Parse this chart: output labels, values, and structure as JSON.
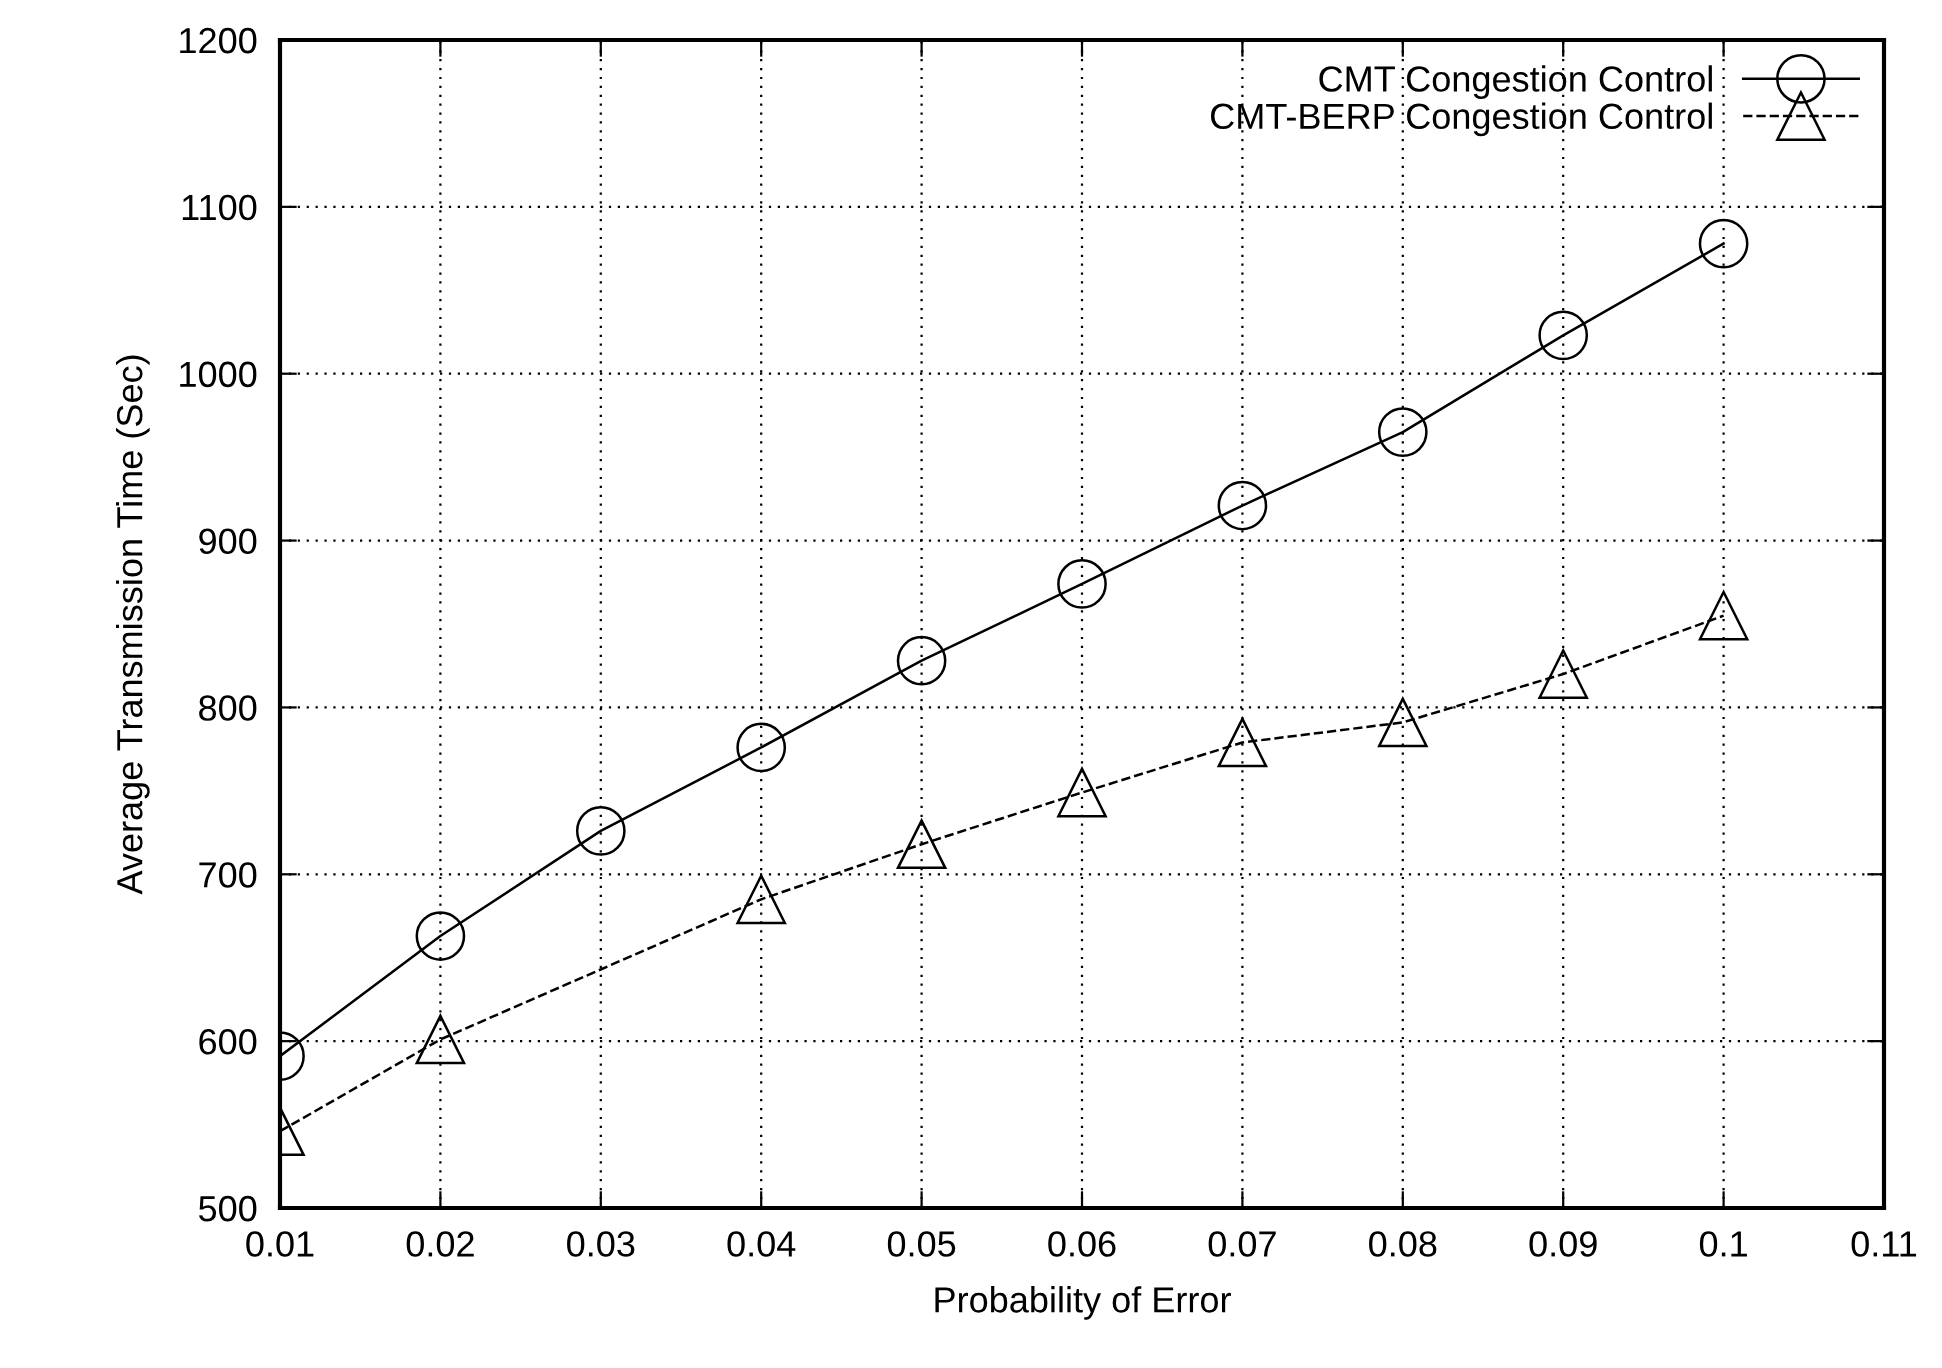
{
  "chart_data": {
    "type": "line",
    "xlabel": "Probability of Error",
    "ylabel": "Average Transmission Time (Sec)",
    "xlim": [
      0.01,
      0.11
    ],
    "xticks": [
      0.01,
      0.02,
      0.03,
      0.04,
      0.05,
      0.06,
      0.07,
      0.08,
      0.09,
      0.1,
      0.11
    ],
    "ylim": [
      500,
      1200
    ],
    "yticks": [
      500,
      600,
      700,
      800,
      900,
      1000,
      1100,
      1200
    ],
    "grid": true,
    "legend": "top right",
    "series": [
      {
        "name": "CMT Congestion Control",
        "color": "#000000",
        "marker": "circle",
        "line_style": "solid",
        "x": [
          0.01,
          0.02,
          0.03,
          0.04,
          0.05,
          0.06,
          0.07,
          0.08,
          0.09,
          0.1
        ],
        "values": [
          591,
          663,
          726,
          776,
          828,
          874,
          921,
          965,
          1023,
          1078
        ]
      },
      {
        "name": "CMT-BERP Congestion Control",
        "color": "#000000",
        "marker": "triangle",
        "line_style": "dashed",
        "x": [
          0.01,
          0.02,
          0.04,
          0.05,
          0.06,
          0.07,
          0.08,
          0.09,
          0.1
        ],
        "values": [
          546,
          601,
          685,
          718,
          749,
          779,
          791,
          820,
          855
        ]
      }
    ]
  }
}
